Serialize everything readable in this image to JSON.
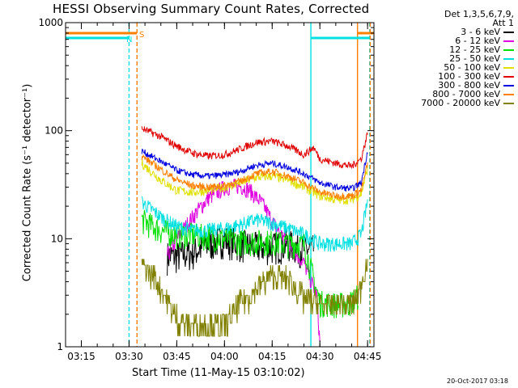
{
  "chart_data": {
    "type": "line",
    "title": "HESSI Observing Summary Count Rates, Corrected",
    "ylabel": "Corrected Count Rate (s⁻¹ detector⁻¹)",
    "xlabel": "Start Time (11-May-15 03:10:02)",
    "footer": "20-Oct-2017 03:18",
    "legend_header": [
      "Det 1,3,5,6,7,9,",
      "Att 1"
    ],
    "legend_position": "right",
    "y_scale": "log",
    "ylim": [
      1,
      1000
    ],
    "y_ticks": [
      "1",
      "10",
      "100",
      "1000"
    ],
    "xlim": [
      "03:10:02",
      "04:47:00"
    ],
    "x_ticks": [
      "03:15",
      "03:30",
      "03:45",
      "04:00",
      "04:15",
      "04:30",
      "04:45"
    ],
    "flags": {
      "saa_label": "S",
      "night_label": "N"
    },
    "series": [
      {
        "name": "3 - 6 keV",
        "color": "#000000",
        "points": [
          [
            "03:42",
            7
          ],
          [
            "03:45",
            7
          ],
          [
            "03:50",
            7.5
          ],
          [
            "03:55",
            9
          ],
          [
            "04:00",
            10
          ],
          [
            "04:05",
            9
          ],
          [
            "04:10",
            8.5
          ],
          [
            "04:15",
            8.5
          ],
          [
            "04:20",
            9
          ],
          [
            "04:25",
            8
          ],
          [
            "04:28",
            8
          ]
        ]
      },
      {
        "name": "6 - 12 keV",
        "color": "#e000e0",
        "points": [
          [
            "03:42",
            7
          ],
          [
            "03:45",
            10
          ],
          [
            "03:50",
            16
          ],
          [
            "03:55",
            24
          ],
          [
            "04:00",
            30
          ],
          [
            "04:05",
            31
          ],
          [
            "04:08",
            28
          ],
          [
            "04:12",
            21
          ],
          [
            "04:16",
            13
          ],
          [
            "04:20",
            9
          ],
          [
            "04:25",
            6
          ],
          [
            "04:29",
            3
          ],
          [
            "04:30",
            1.1
          ]
        ]
      },
      {
        "name": "12 - 25 keV",
        "color": "#00e000",
        "points": [
          [
            "03:34",
            15
          ],
          [
            "03:40",
            12
          ],
          [
            "03:45",
            11
          ],
          [
            "03:50",
            11
          ],
          [
            "03:55",
            10.5
          ],
          [
            "04:00",
            10
          ],
          [
            "04:05",
            9.5
          ],
          [
            "04:10",
            9.5
          ],
          [
            "04:15",
            9.5
          ],
          [
            "04:20",
            9
          ],
          [
            "04:25",
            9
          ],
          [
            "04:30",
            2.6
          ],
          [
            "04:35",
            2.5
          ],
          [
            "04:39",
            2.5
          ],
          [
            "04:42",
            3
          ]
        ]
      },
      {
        "name": "25 - 50 keV",
        "color": "#00e0e0",
        "points": [
          [
            "03:34",
            22
          ],
          [
            "03:40",
            16
          ],
          [
            "03:45",
            13
          ],
          [
            "03:50",
            12
          ],
          [
            "03:55",
            12
          ],
          [
            "04:00",
            12.5
          ],
          [
            "04:05",
            13.5
          ],
          [
            "04:10",
            15
          ],
          [
            "04:15",
            14
          ],
          [
            "04:20",
            12.5
          ],
          [
            "04:25",
            11
          ],
          [
            "04:30",
            9
          ],
          [
            "04:35",
            9
          ],
          [
            "04:40",
            9
          ],
          [
            "04:43",
            11
          ],
          [
            "04:45",
            22
          ]
        ]
      },
      {
        "name": "50 - 100 keV",
        "color": "#e0e000",
        "points": [
          [
            "03:34",
            50
          ],
          [
            "03:40",
            35
          ],
          [
            "03:45",
            28
          ],
          [
            "03:50",
            27
          ],
          [
            "03:55",
            28
          ],
          [
            "04:00",
            30
          ],
          [
            "04:05",
            33
          ],
          [
            "04:10",
            37
          ],
          [
            "04:15",
            38
          ],
          [
            "04:20",
            35
          ],
          [
            "04:25",
            30
          ],
          [
            "04:30",
            25
          ],
          [
            "04:35",
            23
          ],
          [
            "04:40",
            23
          ],
          [
            "04:43",
            26
          ],
          [
            "04:45",
            45
          ]
        ]
      },
      {
        "name": "100 - 300 keV",
        "color": "#e00000",
        "points": [
          [
            "03:34",
            105
          ],
          [
            "03:40",
            88
          ],
          [
            "03:45",
            72
          ],
          [
            "03:50",
            62
          ],
          [
            "03:55",
            58
          ],
          [
            "04:00",
            60
          ],
          [
            "04:05",
            68
          ],
          [
            "04:10",
            78
          ],
          [
            "04:15",
            80
          ],
          [
            "04:20",
            72
          ],
          [
            "04:25",
            60
          ],
          [
            "04:28",
            70
          ],
          [
            "04:30",
            55
          ],
          [
            "04:35",
            50
          ],
          [
            "04:40",
            47
          ],
          [
            "04:43",
            55
          ],
          [
            "04:45",
            95
          ]
        ]
      },
      {
        "name": "300 - 800 keV",
        "color": "#0000e0",
        "points": [
          [
            "03:34",
            65
          ],
          [
            "03:40",
            52
          ],
          [
            "03:45",
            43
          ],
          [
            "03:50",
            39
          ],
          [
            "03:55",
            38
          ],
          [
            "04:00",
            39
          ],
          [
            "04:05",
            42
          ],
          [
            "04:10",
            48
          ],
          [
            "04:15",
            50
          ],
          [
            "04:20",
            46
          ],
          [
            "04:25",
            40
          ],
          [
            "04:30",
            33
          ],
          [
            "04:35",
            30
          ],
          [
            "04:40",
            29
          ],
          [
            "04:43",
            33
          ],
          [
            "04:45",
            65
          ]
        ]
      },
      {
        "name": "800 - 7000 keV",
        "color": "#ff8000",
        "points": [
          [
            "03:34",
            58
          ],
          [
            "03:40",
            44
          ],
          [
            "03:45",
            35
          ],
          [
            "03:50",
            31
          ],
          [
            "03:55",
            30
          ],
          [
            "04:00",
            31
          ],
          [
            "04:05",
            34
          ],
          [
            "04:10",
            40
          ],
          [
            "04:15",
            42
          ],
          [
            "04:20",
            38
          ],
          [
            "04:25",
            33
          ],
          [
            "04:30",
            27
          ],
          [
            "04:35",
            25
          ],
          [
            "04:40",
            25
          ],
          [
            "04:43",
            28
          ],
          [
            "04:45",
            50
          ]
        ]
      },
      {
        "name": "7000 - 20000 keV",
        "color": "#808000",
        "points": [
          [
            "03:34",
            6
          ],
          [
            "03:36",
            5
          ],
          [
            "03:38",
            4.5
          ],
          [
            "03:40",
            3.5
          ],
          [
            "03:42",
            2.8
          ],
          [
            "03:44",
            2
          ],
          [
            "03:46",
            1.7
          ],
          [
            "03:50",
            1.6
          ],
          [
            "03:55",
            1.6
          ],
          [
            "04:00",
            1.6
          ],
          [
            "04:03",
            2
          ],
          [
            "04:05",
            2.7
          ],
          [
            "04:08",
            3
          ],
          [
            "04:10",
            3.5
          ],
          [
            "04:12",
            4
          ],
          [
            "04:15",
            4.5
          ],
          [
            "04:20",
            4.3
          ],
          [
            "04:22",
            3.6
          ],
          [
            "04:25",
            2.8
          ],
          [
            "04:30",
            2.5
          ],
          [
            "04:35",
            2.5
          ],
          [
            "04:40",
            2.5
          ],
          [
            "04:42",
            3
          ],
          [
            "04:44",
            5
          ],
          [
            "04:45",
            7
          ]
        ]
      }
    ],
    "vertical_markers": [
      {
        "time": "03:30:00",
        "color": "#00e0e0",
        "style": "dashed"
      },
      {
        "time": "03:32:30",
        "color": "#ff8000",
        "style": "dashed"
      },
      {
        "time": "04:27:10",
        "color": "#00e0e0",
        "style": "solid"
      },
      {
        "time": "04:41:50",
        "color": "#ff8000",
        "style": "solid"
      },
      {
        "time": "04:45:40",
        "color": "#00e0e0",
        "style": "dashed"
      },
      {
        "time": "04:45:50",
        "color": "#ff8000",
        "style": "dashed"
      }
    ],
    "flag_bars": [
      {
        "kind": "saa",
        "color": "#ff8000",
        "segments": [
          [
            "03:10:02",
            "03:32:30"
          ],
          [
            "04:41:50",
            "04:47:00"
          ]
        ]
      },
      {
        "kind": "night",
        "color": "#00e0e0",
        "segments": [
          [
            "03:10:02",
            "03:30:00"
          ],
          [
            "04:27:10",
            "04:45:40"
          ]
        ]
      }
    ]
  }
}
